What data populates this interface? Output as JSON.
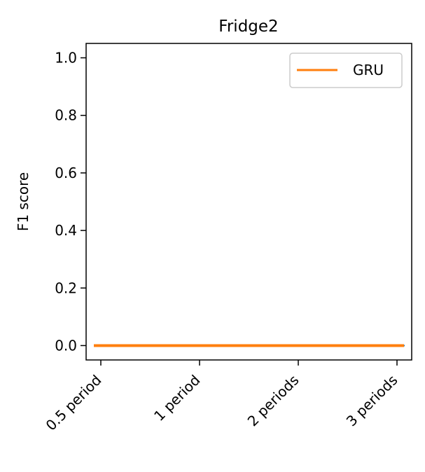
{
  "chart_data": {
    "type": "line",
    "title": "Fridge2",
    "xlabel": "",
    "ylabel": "F1 score",
    "categories": [
      "0.5 period",
      "1 period",
      "2 periods",
      "3 periods"
    ],
    "ylim": [
      -0.05,
      1.05
    ],
    "yticks": [
      0.0,
      0.2,
      0.4,
      0.6,
      0.8,
      1.0
    ],
    "ytick_labels": [
      "0.0",
      "0.2",
      "0.4",
      "0.6",
      "0.8",
      "1.0"
    ],
    "grid": false,
    "legend_placement": "top-right",
    "series": [
      {
        "name": "",
        "values": [
          0.0,
          0.0,
          0.0,
          0.0
        ],
        "color": "#1f77b4",
        "style": "dashed"
      },
      {
        "name": "GRU",
        "values": [
          0.0,
          0.0,
          0.0,
          0.0
        ],
        "color": "#ff7f0e",
        "style": "solid"
      }
    ],
    "legend": [
      "GRU"
    ]
  }
}
